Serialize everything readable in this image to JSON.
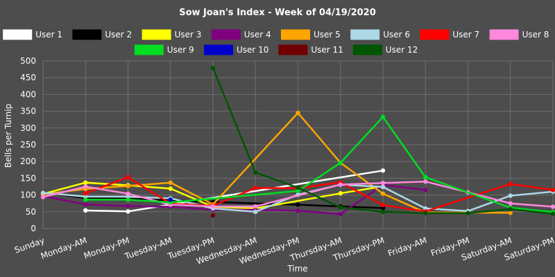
{
  "chart_data": {
    "type": "line",
    "title": "Sow Joan's Index - Week of 04/19/2020",
    "xlabel": "Time",
    "ylabel": "Bells per Turnip",
    "ylim": [
      0,
      500
    ],
    "yticks": [
      0,
      50,
      100,
      150,
      200,
      250,
      300,
      350,
      400,
      450,
      500
    ],
    "grid": true,
    "legend_position": "top",
    "background_color": "#4d4d4d",
    "grid_color": "#6e6e6e",
    "categories": [
      "Sunday",
      "Monday-AM",
      "Monday-PM",
      "Tuesday-AM",
      "Tuesday-PM",
      "Wednesday-AM",
      "Wednesday-PM",
      "Thursday-AM",
      "Thursday-PM",
      "Friday-AM",
      "Friday-PM",
      "Saturday-AM",
      "Saturday-PM"
    ],
    "series": [
      {
        "name": "User 1",
        "color": "#ffffff",
        "values": [
          null,
          54,
          51,
          null,
          null,
          null,
          null,
          null,
          173,
          null,
          null,
          null,
          null
        ]
      },
      {
        "name": "User 2",
        "color": "#000000",
        "values": [
          108,
          91,
          89,
          84,
          79,
          null,
          71,
          66,
          61,
          null,
          null,
          null,
          null
        ]
      },
      {
        "name": "User 3",
        "color": "#ffff00",
        "values": [
          103,
          137,
          129,
          119,
          65,
          60,
          null,
          105,
          126,
          null,
          null,
          null,
          null
        ]
      },
      {
        "name": "User 4",
        "color": "#800080",
        "values": [
          97,
          72,
          67,
          65,
          56,
          56,
          53,
          43,
          130,
          115,
          null,
          null,
          null
        ]
      },
      {
        "name": "User 5",
        "color": "#ffa500",
        "values": [
          102,
          118,
          127,
          137,
          72,
          null,
          345,
          196,
          104,
          48,
          null,
          47,
          null
        ]
      },
      {
        "name": "User 6",
        "color": "#add8e6",
        "values": [
          107,
          95,
          95,
          90,
          60,
          50,
          101,
          131,
          124,
          60,
          52,
          98,
          110
        ]
      },
      {
        "name": "User 7",
        "color": "#ff0000",
        "values": [
          null,
          105,
          153,
          74,
          68,
          121,
          120,
          138,
          70,
          51,
          null,
          133,
          115
        ]
      },
      {
        "name": "User 8",
        "color": "#ff88dd",
        "values": [
          94,
          125,
          104,
          71,
          66,
          66,
          null,
          131,
          136,
          140,
          108,
          75,
          65
        ]
      },
      {
        "name": "User 9",
        "color": "#00dd22",
        "values": [
          null,
          86,
          86,
          78,
          null,
          null,
          112,
          196,
          333,
          153,
          null,
          62,
          49
        ]
      },
      {
        "name": "User 10",
        "color": "#0000cc",
        "values": [
          null,
          null,
          null,
          86,
          null,
          null,
          null,
          null,
          null,
          null,
          null,
          null,
          null
        ]
      },
      {
        "name": "User 11",
        "color": "#700000",
        "values": [
          null,
          null,
          null,
          null,
          39,
          null,
          null,
          null,
          null,
          null,
          null,
          null,
          null
        ]
      },
      {
        "name": "User 12",
        "color": "#005500",
        "values": [
          null,
          null,
          null,
          null,
          479,
          167,
          122,
          63,
          50,
          46,
          46,
          58,
          44
        ]
      }
    ]
  }
}
